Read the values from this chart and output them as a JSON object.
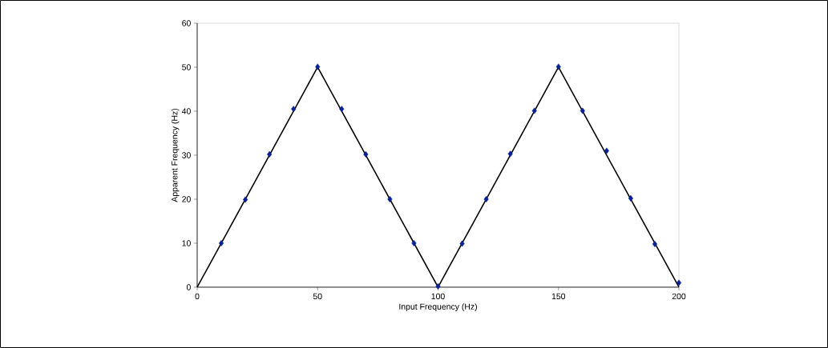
{
  "chart_data": {
    "type": "line",
    "xlabel": "Input Frequency (Hz)",
    "ylabel": "Apparent Frequency (Hz)",
    "xlim": [
      0,
      200
    ],
    "ylim": [
      0,
      60
    ],
    "xticks": [
      0,
      50,
      100,
      150,
      200
    ],
    "yticks": [
      0,
      10,
      20,
      30,
      40,
      50,
      60
    ],
    "grid": false,
    "series": [
      {
        "type": "line",
        "color": "#000000",
        "marker": "none",
        "line_style": "solid",
        "x": [
          0,
          50,
          100,
          150,
          200
        ],
        "values": [
          0,
          50,
          0,
          50,
          0
        ]
      },
      {
        "type": "scatter",
        "color": "#0a2196",
        "marker": "diamond",
        "x": [
          10,
          20,
          30,
          40,
          50,
          60,
          70,
          80,
          90,
          100,
          110,
          120,
          130,
          140,
          150,
          160,
          170,
          180,
          190,
          200
        ],
        "values": [
          10,
          19.9,
          30.2,
          40.5,
          50.1,
          40.5,
          30.2,
          20,
          10,
          0.2,
          9.9,
          20,
          30.3,
          40.1,
          50.1,
          40.1,
          31,
          20.2,
          9.8,
          1.0
        ]
      }
    ]
  }
}
